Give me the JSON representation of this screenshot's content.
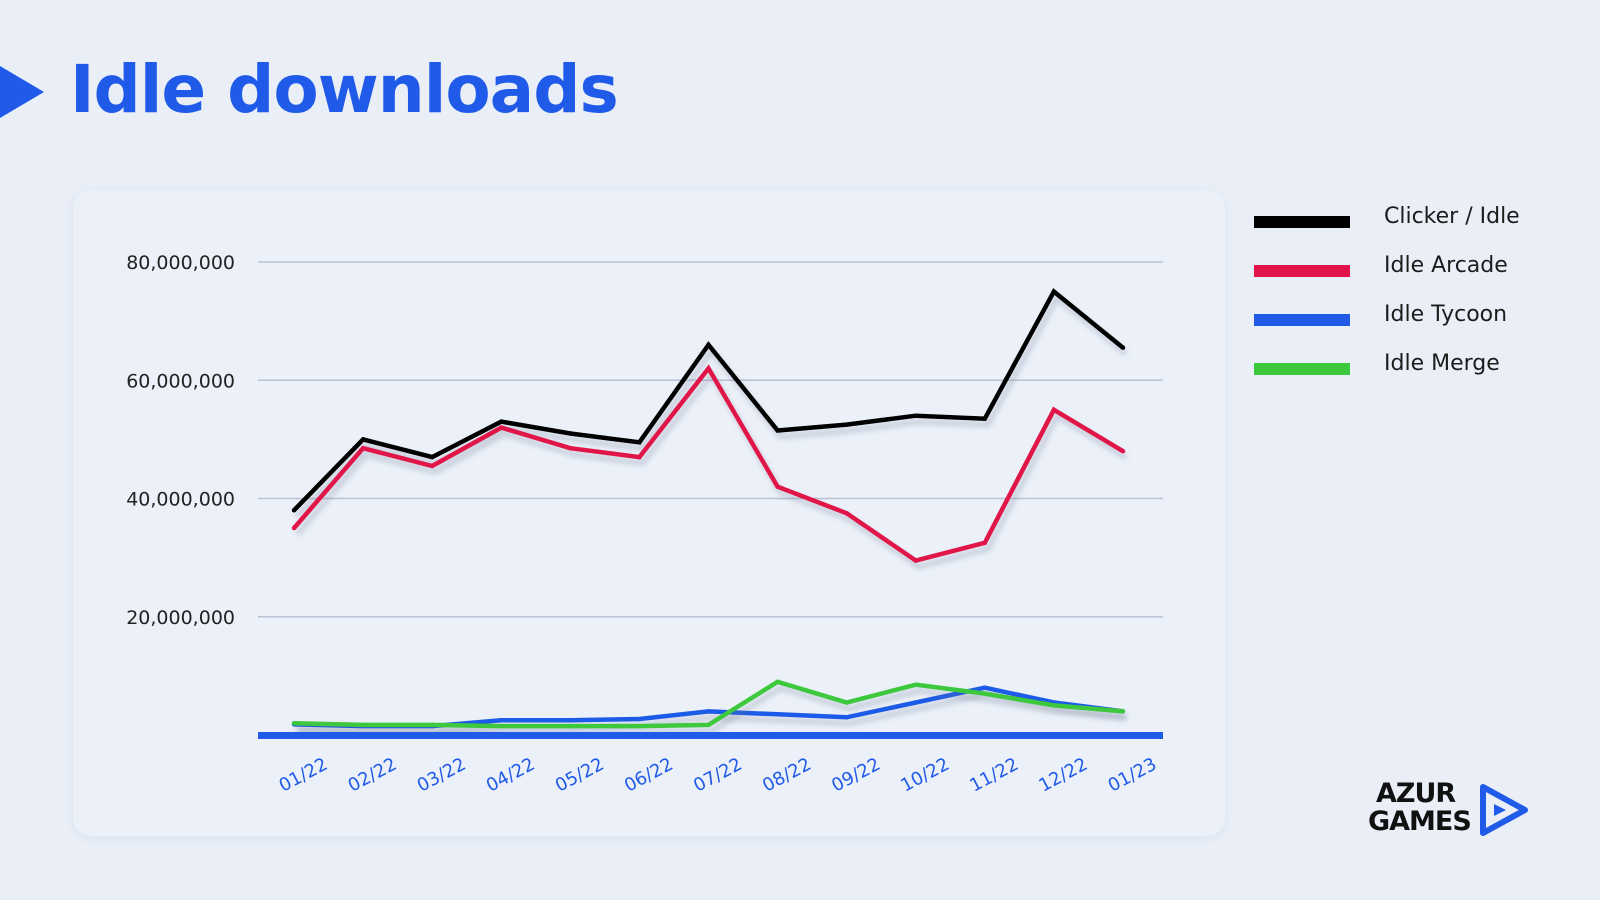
{
  "page": {
    "title": "Idle downloads"
  },
  "brand": {
    "line1": "AZUR",
    "line2": "GAMES",
    "accent": "#1f5ae8"
  },
  "chart_data": {
    "type": "line",
    "title": "",
    "xlabel": "",
    "ylabel": "",
    "ylim": [
      0,
      80000000
    ],
    "yticks": [
      20000000,
      40000000,
      60000000,
      80000000
    ],
    "ytick_labels": [
      "20,000,000",
      "40,000,000",
      "60,000,000",
      "80,000,000"
    ],
    "grid": true,
    "legend": "right",
    "categories": [
      "01/22",
      "02/22",
      "03/22",
      "04/22",
      "05/22",
      "06/22",
      "07/22",
      "08/22",
      "09/22",
      "10/22",
      "11/22",
      "12/22",
      "01/23"
    ],
    "series": [
      {
        "name": "Clicker / Idle",
        "color": "#000000",
        "values": [
          38000000,
          50000000,
          47000000,
          53000000,
          51000000,
          49500000,
          66000000,
          51500000,
          52500000,
          54000000,
          53500000,
          75000000,
          65500000
        ]
      },
      {
        "name": "Idle Arcade",
        "color": "#e0134a",
        "values": [
          35000000,
          48500000,
          45500000,
          52000000,
          48500000,
          47000000,
          62000000,
          42000000,
          37500000,
          29500000,
          32500000,
          55000000,
          48000000
        ]
      },
      {
        "name": "Idle Tycoon",
        "color": "#1f5ae8",
        "values": [
          1800000,
          1500000,
          1500000,
          2500000,
          2500000,
          2700000,
          4000000,
          3500000,
          3000000,
          5500000,
          8000000,
          5500000,
          4000000
        ]
      },
      {
        "name": "Idle Merge",
        "color": "#3cc83c",
        "values": [
          2000000,
          1700000,
          1700000,
          1500000,
          1500000,
          1500000,
          1700000,
          9000000,
          5500000,
          8500000,
          7000000,
          5000000,
          4000000
        ]
      }
    ]
  }
}
